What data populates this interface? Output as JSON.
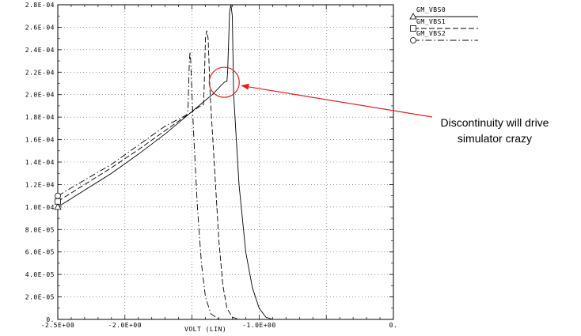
{
  "chart_data": {
    "type": "line",
    "xlabel": "VOLT (LIN)",
    "xlim": [
      -2.5,
      0
    ],
    "ylim": [
      0,
      0.00028
    ],
    "grid": true,
    "x_ticks": [
      {
        "value": -2.5,
        "label": "-2.5E+00"
      },
      {
        "value": -2.0,
        "label": "-2.0E+00"
      },
      {
        "value": -1.0,
        "label": "-1.0E+00"
      },
      {
        "value": 0.0,
        "label": "0."
      }
    ],
    "y_ticks": [
      {
        "value": 0,
        "label": "0."
      },
      {
        "value": 2e-05,
        "label": "2.0E-05"
      },
      {
        "value": 4e-05,
        "label": "4.0E-05"
      },
      {
        "value": 6e-05,
        "label": "6.0E-05"
      },
      {
        "value": 8e-05,
        "label": "8.0E-05"
      },
      {
        "value": 0.0001,
        "label": "1.0E-04"
      },
      {
        "value": 0.00012,
        "label": "1.2E-04"
      },
      {
        "value": 0.00014,
        "label": "1.4E-04"
      },
      {
        "value": 0.00016,
        "label": "1.6E-04"
      },
      {
        "value": 0.00018,
        "label": "1.8E-04"
      },
      {
        "value": 0.0002,
        "label": "2.0E-04"
      },
      {
        "value": 0.00022,
        "label": "2.2E-04"
      },
      {
        "value": 0.00024,
        "label": "2.4E-04"
      },
      {
        "value": 0.00026,
        "label": "2.6E-04"
      },
      {
        "value": 0.00028,
        "label": "2.8E-04"
      }
    ],
    "legend_position": "right",
    "series": [
      {
        "name": "GM_VBS0",
        "dash": "solid",
        "marker": "triangle",
        "points": [
          [
            -2.5,
            0.0001
          ],
          [
            -2.3,
            0.000115
          ],
          [
            -2.1,
            0.00013
          ],
          [
            -1.9,
            0.000147
          ],
          [
            -1.7,
            0.000165
          ],
          [
            -1.5,
            0.000185
          ],
          [
            -1.35,
            0.0002
          ],
          [
            -1.26,
            0.000211
          ],
          [
            -1.24,
            0.000212
          ],
          [
            -1.235,
            0.00022
          ],
          [
            -1.22,
            0.000274
          ],
          [
            -1.21,
            0.00028
          ],
          [
            -1.2,
            0.00027
          ],
          [
            -1.19,
            0.0002
          ],
          [
            -1.15,
            0.00012
          ],
          [
            -1.1,
            6e-05
          ],
          [
            -1.05,
            2.8e-05
          ],
          [
            -1.0,
            1e-05
          ],
          [
            -0.95,
            2e-06
          ],
          [
            -0.9,
            0.0
          ],
          [
            -0.5,
            0.0
          ],
          [
            0.0,
            0.0
          ]
        ]
      },
      {
        "name": "GM_VBS1",
        "dash": "long-dash",
        "marker": "square",
        "points": [
          [
            -2.5,
            0.000105
          ],
          [
            -2.3,
            0.00012
          ],
          [
            -2.1,
            0.000135
          ],
          [
            -1.9,
            0.000151
          ],
          [
            -1.7,
            0.000168
          ],
          [
            -1.45,
            0.000189
          ],
          [
            -1.415,
            0.000191
          ],
          [
            -1.41,
            0.000205
          ],
          [
            -1.4,
            0.00025
          ],
          [
            -1.39,
            0.000257
          ],
          [
            -1.38,
            0.00025
          ],
          [
            -1.365,
            0.0002
          ],
          [
            -1.33,
            0.00013
          ],
          [
            -1.3,
            7e-05
          ],
          [
            -1.27,
            3e-05
          ],
          [
            -1.24,
            1e-05
          ],
          [
            -1.2,
            2e-06
          ],
          [
            -1.15,
            0.0
          ],
          [
            -0.5,
            0.0
          ],
          [
            0.0,
            0.0
          ]
        ]
      },
      {
        "name": "GM_VBS2",
        "dash": "dash-dot",
        "marker": "circle",
        "points": [
          [
            -2.5,
            0.00011
          ],
          [
            -2.3,
            0.000124
          ],
          [
            -2.1,
            0.000138
          ],
          [
            -1.9,
            0.000155
          ],
          [
            -1.7,
            0.000172
          ],
          [
            -1.54,
            0.000182
          ],
          [
            -1.53,
            0.000186
          ],
          [
            -1.52,
            0.00023
          ],
          [
            -1.515,
            0.000238
          ],
          [
            -1.51,
            0.00023
          ],
          [
            -1.49,
            0.00017
          ],
          [
            -1.46,
            0.0001
          ],
          [
            -1.43,
            5e-05
          ],
          [
            -1.4,
            2e-05
          ],
          [
            -1.36,
            5e-06
          ],
          [
            -1.3,
            0.0
          ],
          [
            -0.5,
            0.0
          ],
          [
            0.0,
            0.0
          ]
        ]
      }
    ],
    "annotation": {
      "text_line1": "Discontinuity will drive",
      "text_line2": "simulator crazy",
      "target": [
        -1.26,
        0.000211
      ],
      "color": "#e02020"
    }
  }
}
